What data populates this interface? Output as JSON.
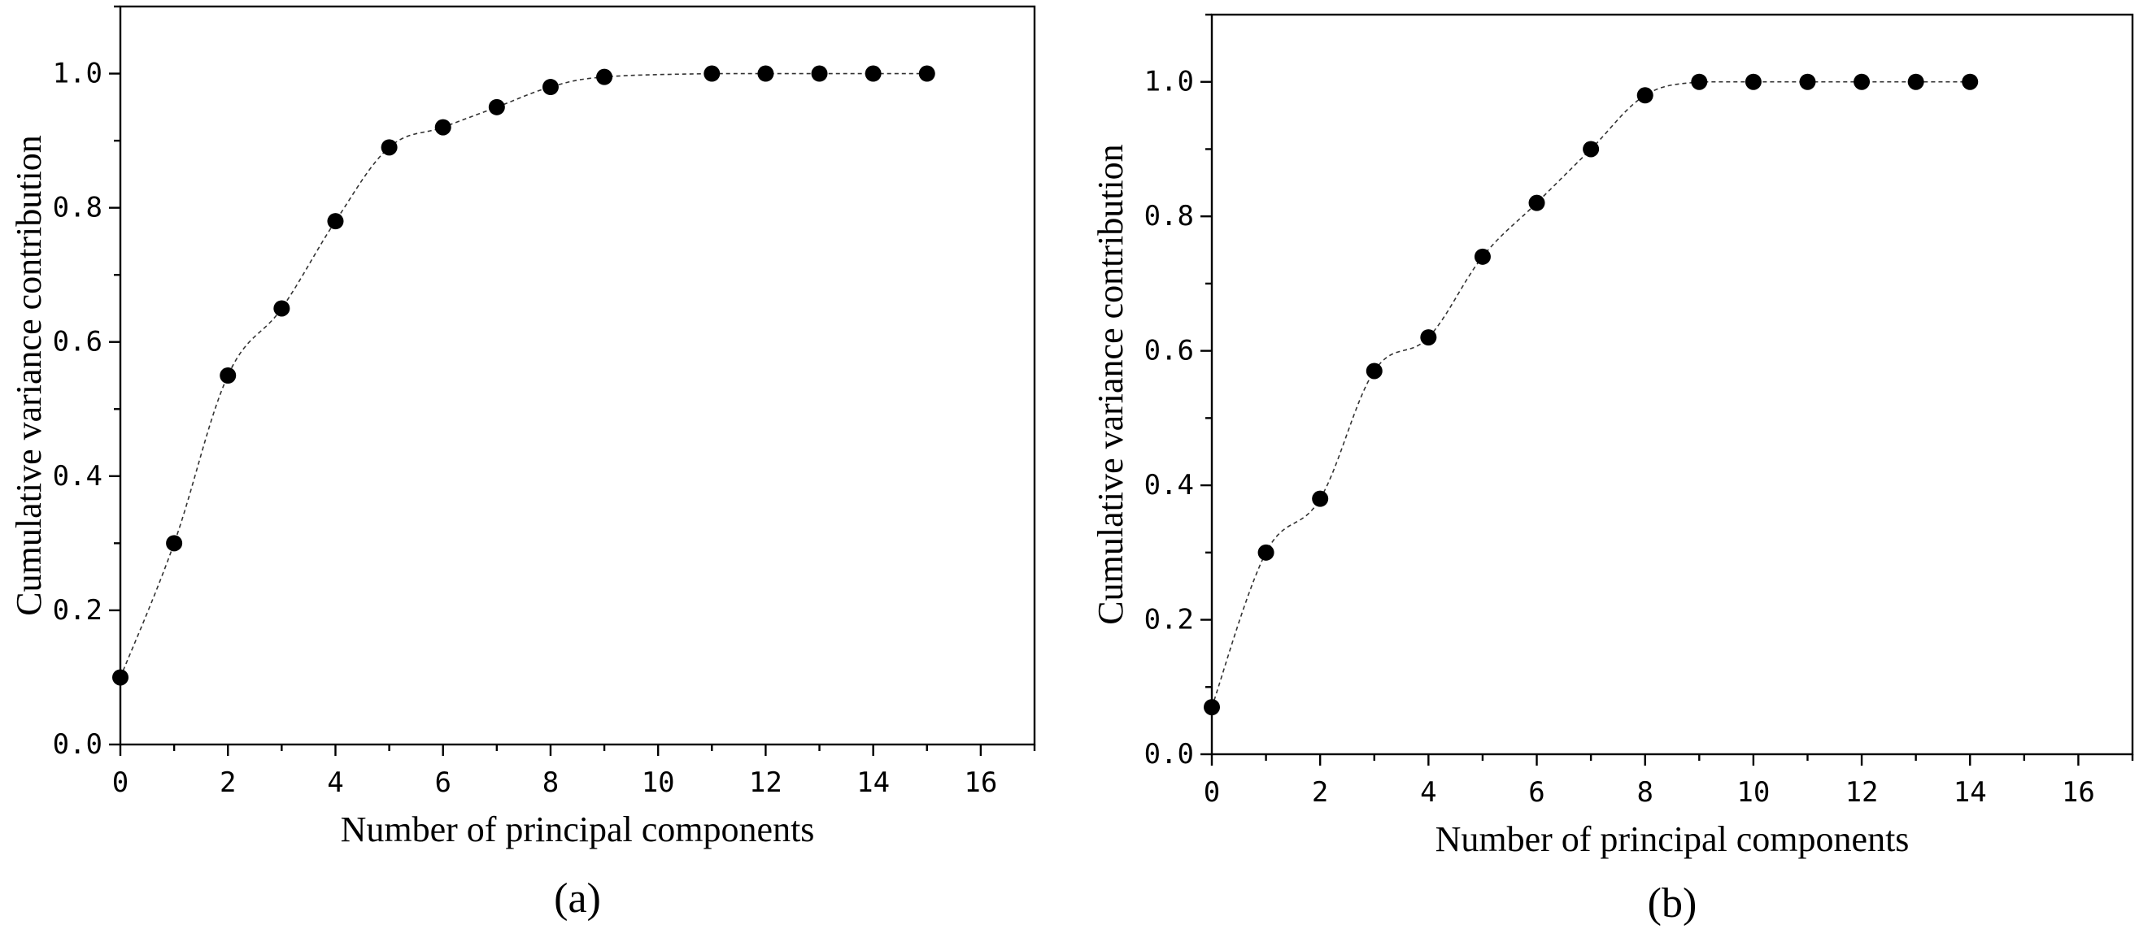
{
  "chart_data": [
    {
      "panel": "(a)",
      "type": "scatter",
      "xlabel": "Number of principal components",
      "ylabel": "Cumulative variance contribution",
      "xlim": [
        0,
        17
      ],
      "ylim": [
        0,
        1.1
      ],
      "xticks": [
        0,
        2,
        4,
        6,
        8,
        10,
        12,
        14,
        16
      ],
      "yticks": [
        0.0,
        0.2,
        0.4,
        0.6,
        0.8,
        1.0
      ],
      "x": [
        0,
        1,
        2,
        3,
        4,
        5,
        6,
        7,
        8,
        9,
        11,
        12,
        13,
        14,
        15
      ],
      "y": [
        0.1,
        0.3,
        0.55,
        0.65,
        0.78,
        0.89,
        0.92,
        0.95,
        0.98,
        0.995,
        1.0,
        1.0,
        1.0,
        1.0,
        1.0
      ],
      "grid": false,
      "line_style": "dashed smooth"
    },
    {
      "panel": "(b)",
      "type": "scatter",
      "xlabel": "Number of principal components",
      "ylabel": "Cumulative variance contribution",
      "xlim": [
        0,
        17
      ],
      "ylim": [
        0,
        1.1
      ],
      "xticks": [
        0,
        2,
        4,
        6,
        8,
        10,
        12,
        14,
        16
      ],
      "yticks": [
        0.0,
        0.2,
        0.4,
        0.6,
        0.8,
        1.0
      ],
      "x": [
        0,
        1,
        2,
        3,
        4,
        5,
        6,
        7,
        8,
        9,
        10,
        11,
        12,
        13,
        14
      ],
      "y": [
        0.07,
        0.3,
        0.38,
        0.57,
        0.62,
        0.74,
        0.82,
        0.9,
        0.98,
        1.0,
        1.0,
        1.0,
        1.0,
        1.0,
        1.0
      ],
      "grid": false,
      "line_style": "dashed smooth"
    }
  ]
}
